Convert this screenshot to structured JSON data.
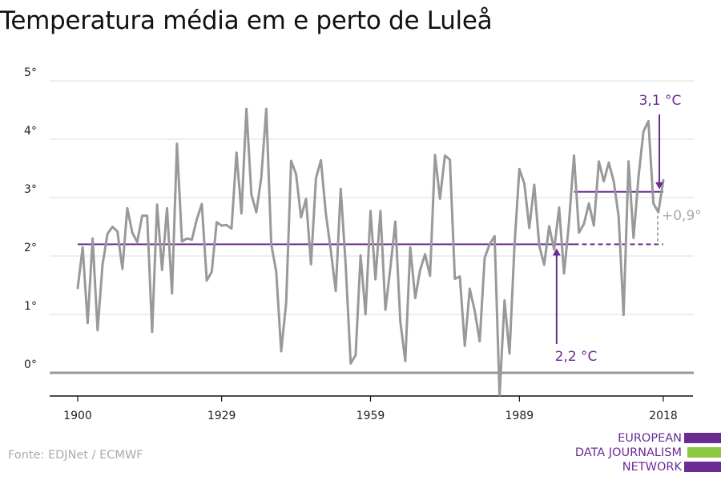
{
  "title": "Temperatura média em e perto de Luleå",
  "source": "Fonte: EDJNet / ECMWF",
  "logo": {
    "lines": [
      "EUROPEAN",
      "DATA JOURNALISM",
      "NETWORK"
    ],
    "colors": [
      "#6b2c91",
      "#8dc63f",
      "#6b2c91"
    ]
  },
  "colors": {
    "series": "#999999",
    "accent": "#6b2c91",
    "grid": "#dddddd",
    "zero": "#999999",
    "delta": "#aaaaaa"
  },
  "chart_data": {
    "type": "line",
    "title": "Temperatura média em e perto de Luleå",
    "xlabel": "",
    "ylabel": "",
    "xlim": [
      1900,
      2018
    ],
    "ylim": [
      -0.4,
      5
    ],
    "yticks": [
      0,
      1,
      2,
      3,
      4,
      5
    ],
    "ytick_labels": [
      "0°",
      "1°",
      "2°",
      "3°",
      "4°",
      "5°"
    ],
    "xticks": [
      1900,
      1929,
      1959,
      1989,
      2018
    ],
    "xtick_labels": [
      "1900",
      "1929",
      "1959",
      "1989",
      "2018"
    ],
    "grid": true,
    "series": [
      {
        "x": [
          1900,
          1901,
          1902,
          1903,
          1904,
          1905,
          1906,
          1907,
          1908,
          1909,
          1910,
          1911,
          1912,
          1913,
          1914,
          1915,
          1916,
          1917,
          1918,
          1919,
          1920,
          1921,
          1922,
          1923,
          1924,
          1925,
          1926,
          1927,
          1928,
          1929,
          1930,
          1931,
          1932,
          1933,
          1934,
          1935,
          1936,
          1937,
          1938,
          1939,
          1940,
          1941,
          1942,
          1943,
          1944,
          1945,
          1946,
          1947,
          1948,
          1949,
          1950,
          1951,
          1952,
          1953,
          1954,
          1955,
          1956,
          1957,
          1958,
          1959,
          1960,
          1961,
          1962,
          1963,
          1964,
          1965,
          1966,
          1967,
          1968,
          1969,
          1970,
          1971,
          1972,
          1973,
          1974,
          1975,
          1976,
          1977,
          1978,
          1979,
          1980,
          1981,
          1982,
          1983,
          1984,
          1985,
          1986,
          1987,
          1988,
          1989,
          1990,
          1991,
          1992,
          1993,
          1994,
          1995,
          1996,
          1997,
          1998,
          1999,
          2000,
          2001,
          2002,
          2003,
          2004,
          2005,
          2006,
          2007,
          2008,
          2009,
          2010,
          2011,
          2012,
          2013,
          2014,
          2015,
          2016,
          2017,
          2018
        ],
        "values": [
          1.45,
          2.15,
          0.85,
          2.3,
          0.73,
          1.85,
          2.38,
          2.5,
          2.42,
          1.78,
          2.82,
          2.4,
          2.24,
          2.69,
          2.69,
          0.7,
          2.88,
          1.76,
          2.82,
          1.36,
          3.92,
          2.25,
          2.3,
          2.28,
          2.63,
          2.89,
          1.58,
          1.73,
          2.58,
          2.52,
          2.53,
          2.47,
          3.77,
          2.73,
          4.52,
          3.05,
          2.75,
          3.35,
          4.52,
          2.2,
          1.73,
          0.37,
          1.2,
          3.63,
          3.4,
          2.66,
          2.98,
          1.86,
          3.33,
          3.64,
          2.73,
          2.1,
          1.4,
          3.15,
          1.85,
          0.16,
          0.3,
          2.01,
          1.0,
          2.77,
          1.6,
          2.77,
          1.08,
          1.8,
          2.59,
          0.88,
          0.2,
          2.15,
          1.28,
          1.76,
          2.03,
          1.66,
          3.73,
          2.98,
          3.72,
          3.65,
          1.61,
          1.65,
          0.46,
          1.44,
          1.06,
          0.54,
          1.97,
          2.2,
          2.34,
          -0.38,
          1.24,
          0.33,
          2.17,
          3.49,
          3.24,
          2.48,
          3.22,
          2.18,
          1.85,
          2.51,
          2.11,
          2.83,
          1.7,
          2.58,
          3.72,
          2.4,
          2.55,
          2.9,
          2.52,
          3.62,
          3.28,
          3.6,
          3.28,
          2.68,
          0.99,
          3.62,
          2.31,
          3.35,
          4.13,
          4.31,
          2.9,
          2.75,
          3.3
        ]
      }
    ],
    "annotations": {
      "baseline": {
        "value": 2.2,
        "label": "2,2 °C",
        "x_start": 1900,
        "x_end": 2018,
        "dashed_from": 2000
      },
      "recent": {
        "value": 3.1,
        "label": "3,1 °C",
        "x_start": 2000,
        "x_end": 2018
      },
      "difference": "+0,9°"
    }
  }
}
